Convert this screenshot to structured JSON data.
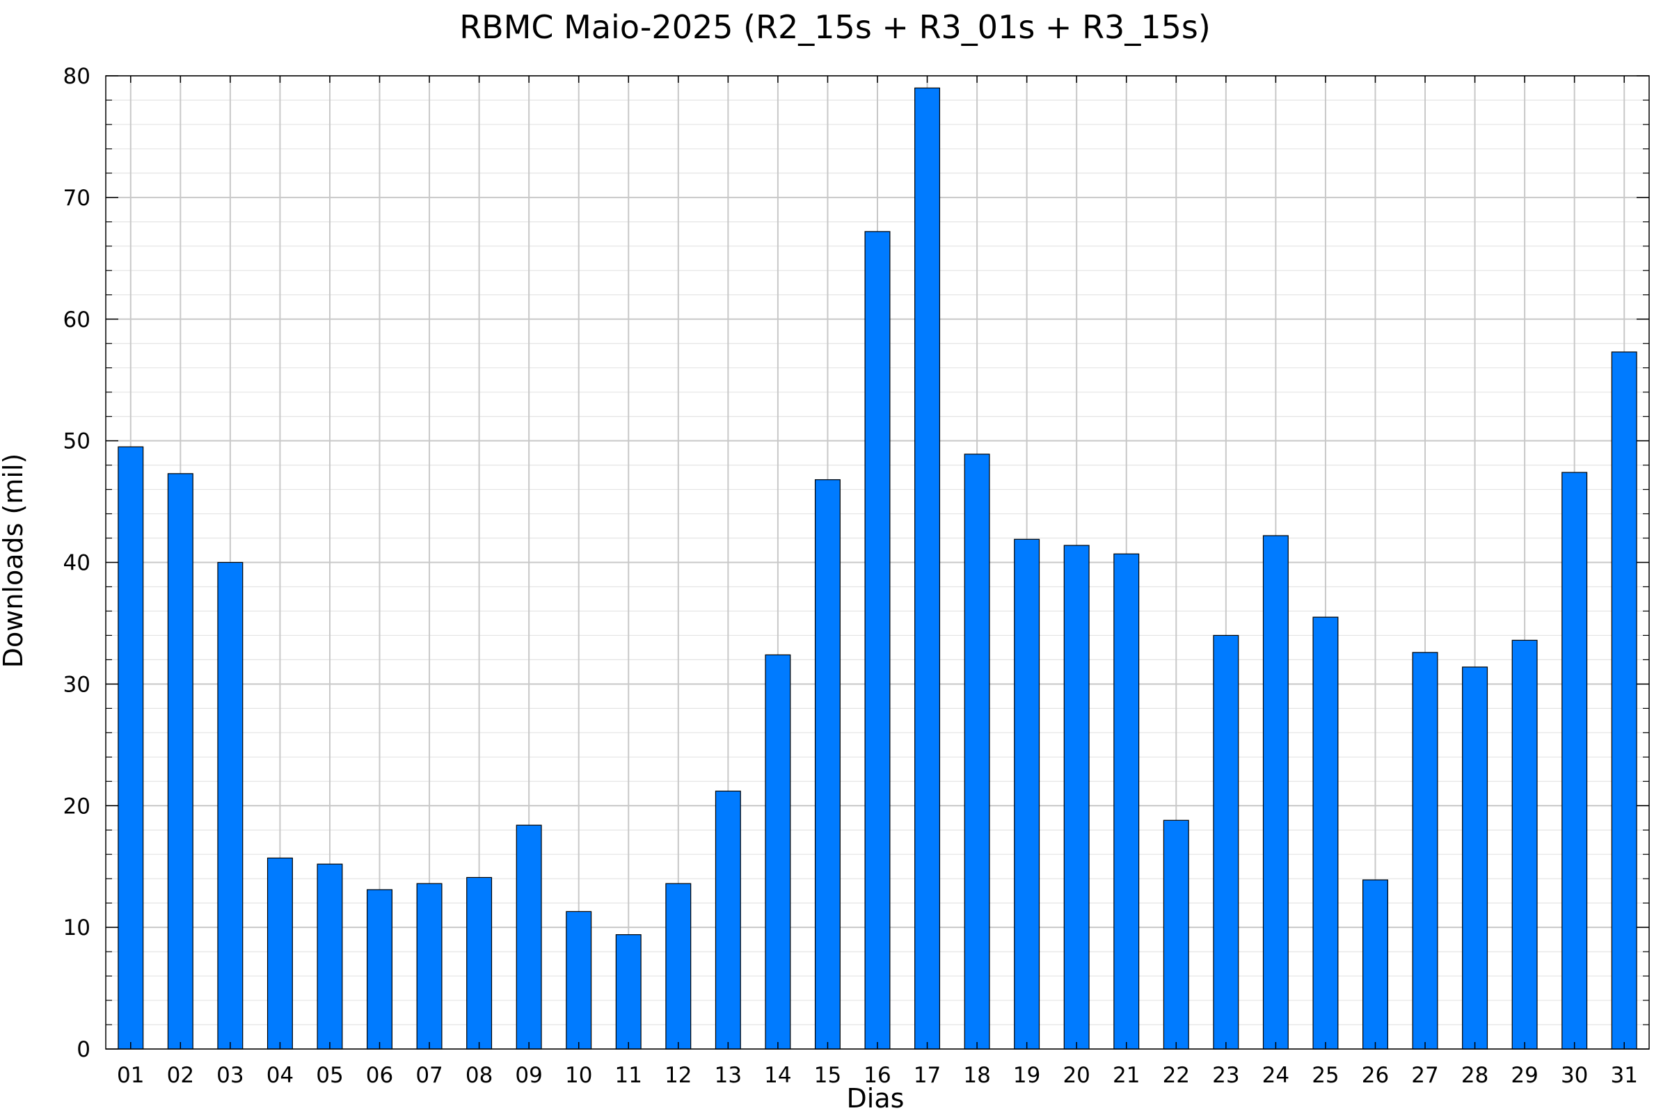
{
  "chart_data": {
    "type": "bar",
    "title": "RBMC Maio-2025 (R2_15s + R3_01s + R3_15s)",
    "xlabel": "Dias",
    "ylabel": "Downloads (mil)",
    "ylim": [
      0,
      80
    ],
    "yticks": [
      0,
      10,
      20,
      30,
      40,
      50,
      60,
      70,
      80
    ],
    "ytick_labels": [
      "0",
      "10",
      "20",
      "30",
      "40",
      "50",
      "60",
      "70",
      "80"
    ],
    "y_minor_step": 2,
    "grid": true,
    "legend": "none",
    "categories": [
      "01",
      "02",
      "03",
      "04",
      "05",
      "06",
      "07",
      "08",
      "09",
      "10",
      "11",
      "12",
      "13",
      "14",
      "15",
      "16",
      "17",
      "18",
      "19",
      "20",
      "21",
      "22",
      "23",
      "24",
      "25",
      "26",
      "27",
      "28",
      "29",
      "30",
      "31"
    ],
    "values": [
      49.5,
      47.3,
      40.0,
      15.7,
      15.2,
      13.1,
      13.6,
      14.1,
      18.4,
      11.3,
      9.4,
      13.6,
      21.2,
      32.4,
      46.8,
      67.2,
      79.0,
      48.9,
      41.9,
      41.4,
      40.7,
      18.8,
      34.0,
      42.2,
      35.5,
      13.9,
      32.6,
      31.4,
      33.6,
      47.4,
      57.3
    ],
    "colors": {
      "bar_fill": "#007bff",
      "bar_edge": "#000000",
      "major_grid": "#c8c8c8",
      "minor_grid": "#e4e4e4",
      "axis": "#000000"
    }
  }
}
